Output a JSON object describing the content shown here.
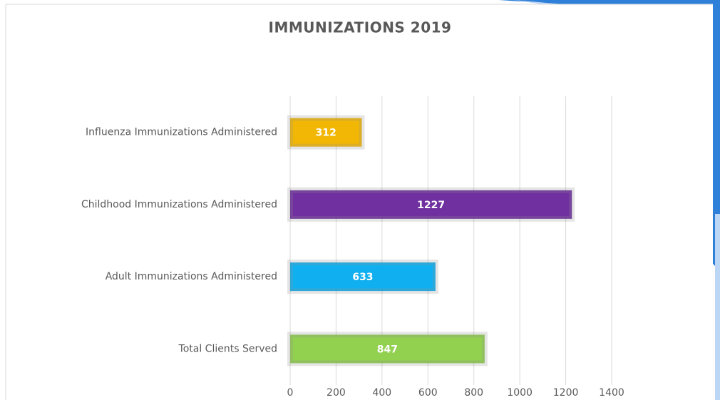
{
  "chart_data": {
    "type": "barh",
    "title": "IMMUNIZATIONS 2019",
    "categories": [
      "Influenza Immunizations Administered",
      "Childhood Immunizations Administered",
      "Adult Immunizations Administered",
      "Total Clients Served"
    ],
    "values": [
      312,
      1227,
      633,
      847
    ],
    "colors": [
      "#f2b705",
      "#7030a0",
      "#10aff0",
      "#92d050"
    ],
    "xlim": [
      0,
      1400
    ],
    "xticks": [
      0,
      200,
      400,
      600,
      800,
      1000,
      1200,
      1400
    ],
    "grid": true
  }
}
